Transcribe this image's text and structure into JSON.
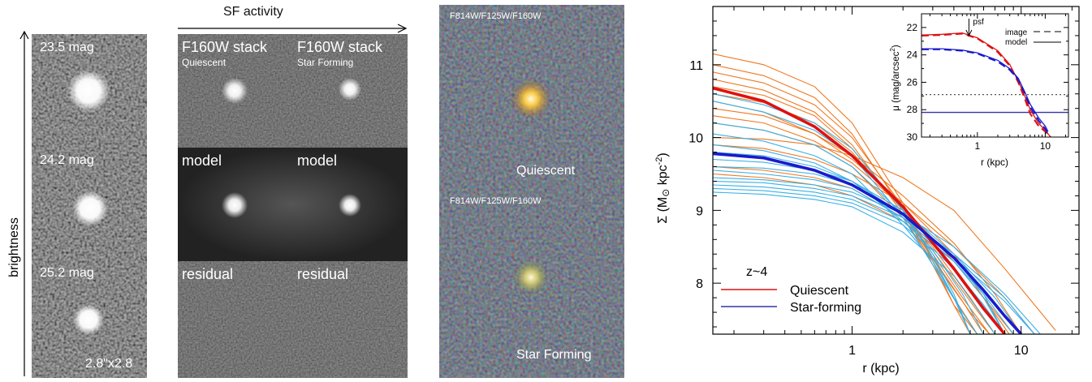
{
  "panel_a": {
    "axis_label": "brightness",
    "stamps": [
      {
        "label": "23.5 mag"
      },
      {
        "label": "24.2 mag"
      },
      {
        "label": "25.2 mag"
      }
    ],
    "scale_label": "2.8\"x2.8"
  },
  "panel_b": {
    "header": "SF activity",
    "columns": [
      {
        "title": "F160W stack",
        "subtitle": "Quiescent"
      },
      {
        "title": "F160W stack",
        "subtitle": "Star Forming"
      }
    ],
    "row_labels": [
      "model",
      "residual"
    ]
  },
  "panel_c": {
    "filters_label": "F814W/F125W/F160W",
    "top_label": "Quiescent",
    "bottom_label": "Star Forming"
  },
  "chart_data": [
    {
      "type": "line",
      "xlabel": "r (kpc)",
      "ylabel_parts": [
        "Σ (M",
        "⊙",
        " kpc",
        "-2",
        ")"
      ],
      "xscale": "log",
      "xlim": [
        0.15,
        22
      ],
      "ylim": [
        7.3,
        11.8
      ],
      "xticks": [
        {
          "v": 1,
          "label": "1"
        },
        {
          "v": 10,
          "label": "10"
        }
      ],
      "yticks": [
        {
          "v": 8,
          "label": "8"
        },
        {
          "v": 9,
          "label": "9"
        },
        {
          "v": 10,
          "label": "10"
        },
        {
          "v": 11,
          "label": "11"
        }
      ],
      "annotation": "z~4",
      "legend": [
        {
          "label": "Quiescent",
          "color": "#dd1111"
        },
        {
          "label": "Star-forming",
          "color": "#3333aa"
        }
      ],
      "colors": {
        "quiescent_thin": "#f07820",
        "starforming_thin": "#3ab0e6",
        "quiescent_mean": "#dd1111",
        "starforming_mean": "#1a1acc"
      },
      "mean_series": [
        {
          "name": "Quiescent",
          "x": [
            0.15,
            0.3,
            0.6,
            1.0,
            2.0,
            4.0,
            6.0,
            8.0
          ],
          "y": [
            10.68,
            10.5,
            10.15,
            9.75,
            9.05,
            8.2,
            7.65,
            7.3
          ]
        },
        {
          "name": "Star-forming",
          "x": [
            0.15,
            0.3,
            0.6,
            1.0,
            2.0,
            4.0,
            6.0,
            8.0,
            10.0
          ],
          "y": [
            9.78,
            9.72,
            9.55,
            9.35,
            8.95,
            8.35,
            7.9,
            7.55,
            7.3
          ]
        }
      ],
      "thin_series": [
        {
          "group": "quiescent",
          "x": [
            0.15,
            0.3,
            0.6,
            1.0,
            2.0,
            3.0,
            4.0,
            5.0
          ],
          "y": [
            11.15,
            11.0,
            10.7,
            10.2,
            9.1,
            8.3,
            7.7,
            7.3
          ]
        },
        {
          "group": "quiescent",
          "x": [
            0.15,
            0.3,
            0.6,
            1.0,
            2.0,
            3.0,
            4.0,
            5.5
          ],
          "y": [
            11.0,
            10.85,
            10.55,
            10.05,
            9.0,
            8.25,
            7.7,
            7.3
          ]
        },
        {
          "group": "quiescent",
          "x": [
            0.15,
            0.3,
            0.6,
            1.0,
            2.0,
            3.0,
            4.5,
            6.0
          ],
          "y": [
            10.9,
            10.75,
            10.45,
            10.0,
            9.05,
            8.35,
            7.75,
            7.3
          ]
        },
        {
          "group": "quiescent",
          "x": [
            0.15,
            0.3,
            0.6,
            1.0,
            2.0,
            3.5,
            5.0,
            6.5
          ],
          "y": [
            10.8,
            10.65,
            10.35,
            9.9,
            8.95,
            8.1,
            7.6,
            7.3
          ]
        },
        {
          "group": "quiescent",
          "x": [
            0.15,
            0.3,
            0.6,
            1.0,
            2.0,
            3.0,
            4.5,
            6.5
          ],
          "y": [
            10.7,
            10.58,
            10.3,
            9.85,
            9.0,
            8.4,
            7.8,
            7.3
          ]
        },
        {
          "group": "quiescent",
          "x": [
            0.15,
            0.3,
            0.6,
            1.0,
            2.0,
            3.0,
            5.0,
            7.0
          ],
          "y": [
            10.6,
            10.48,
            10.2,
            9.8,
            9.0,
            8.45,
            7.75,
            7.3
          ]
        },
        {
          "group": "quiescent",
          "x": [
            0.15,
            0.3,
            0.6,
            1.0,
            2.0,
            4.0,
            6.0,
            8.5
          ],
          "y": [
            10.5,
            10.35,
            10.05,
            9.7,
            9.1,
            8.4,
            7.8,
            7.3
          ]
        },
        {
          "group": "quiescent",
          "x": [
            0.15,
            0.3,
            0.6,
            1.0,
            2.0,
            4.0,
            7.0,
            10.0
          ],
          "y": [
            10.4,
            10.3,
            10.05,
            9.75,
            9.2,
            8.55,
            7.85,
            7.3
          ]
        },
        {
          "group": "quiescent",
          "x": [
            0.15,
            0.3,
            0.6,
            1.0,
            2.0,
            4.0,
            6.0,
            8.0
          ],
          "y": [
            10.3,
            10.2,
            9.95,
            9.65,
            9.05,
            8.3,
            7.8,
            7.3
          ]
        },
        {
          "group": "quiescent",
          "x": [
            0.15,
            0.3,
            0.6,
            1.0,
            2.0,
            3.0,
            4.0,
            5.5
          ],
          "y": [
            10.2,
            10.1,
            9.9,
            9.6,
            8.9,
            8.3,
            7.8,
            7.3
          ]
        },
        {
          "group": "quiescent",
          "x": [
            0.15,
            0.3,
            0.6,
            1.0,
            2.0,
            4.0,
            8.0,
            16.0
          ],
          "y": [
            10.0,
            9.98,
            9.9,
            9.75,
            9.45,
            9.0,
            8.2,
            7.35
          ]
        },
        {
          "group": "quiescent",
          "x": [
            0.15,
            0.3,
            0.6,
            1.0,
            2.0,
            4.0,
            8.0,
            12.0
          ],
          "y": [
            9.9,
            9.85,
            9.7,
            9.5,
            9.1,
            8.5,
            7.8,
            7.3
          ]
        },
        {
          "group": "quiescent",
          "x": [
            0.15,
            0.3,
            0.6,
            1.0,
            2.0,
            3.0,
            5.0,
            7.0
          ],
          "y": [
            9.6,
            9.55,
            9.45,
            9.3,
            8.9,
            8.5,
            7.8,
            7.3
          ]
        },
        {
          "group": "quiescent",
          "x": [
            0.15,
            0.3,
            0.6,
            1.0,
            2.0,
            4.0,
            6.0,
            9.0
          ],
          "y": [
            9.5,
            9.45,
            9.35,
            9.2,
            8.85,
            8.3,
            7.8,
            7.3
          ]
        },
        {
          "group": "starforming",
          "x": [
            0.15,
            0.3,
            0.6,
            1.0,
            2.0,
            3.0,
            4.0,
            5.0
          ],
          "y": [
            10.6,
            10.45,
            10.2,
            9.85,
            9.0,
            8.35,
            7.8,
            7.3
          ]
        },
        {
          "group": "starforming",
          "x": [
            0.15,
            0.3,
            0.6,
            1.0,
            2.0,
            3.0,
            4.5,
            5.5
          ],
          "y": [
            10.5,
            10.35,
            10.1,
            9.75,
            8.9,
            8.25,
            7.6,
            7.3
          ]
        },
        {
          "group": "starforming",
          "x": [
            0.15,
            0.3,
            0.6,
            1.0,
            2.0,
            3.0,
            4.0,
            5.0
          ],
          "y": [
            10.2,
            10.1,
            9.9,
            9.6,
            8.95,
            8.4,
            7.85,
            7.3
          ]
        },
        {
          "group": "starforming",
          "x": [
            0.15,
            0.3,
            0.6,
            1.0,
            2.0,
            3.0,
            4.0,
            5.0
          ],
          "y": [
            10.05,
            9.95,
            9.75,
            9.5,
            8.8,
            8.3,
            7.8,
            7.3
          ]
        },
        {
          "group": "starforming",
          "x": [
            0.15,
            0.3,
            0.6,
            1.0,
            2.0,
            4.0,
            6.0,
            8.0
          ],
          "y": [
            9.9,
            9.82,
            9.65,
            9.4,
            8.85,
            8.2,
            7.7,
            7.3
          ]
        },
        {
          "group": "starforming",
          "x": [
            0.15,
            0.3,
            0.6,
            1.0,
            2.0,
            4.0,
            6.0,
            8.0
          ],
          "y": [
            9.8,
            9.75,
            9.6,
            9.4,
            8.95,
            8.35,
            7.85,
            7.3
          ]
        },
        {
          "group": "starforming",
          "x": [
            0.15,
            0.3,
            0.6,
            1.0,
            2.0,
            4.0,
            7.0,
            10.0
          ],
          "y": [
            9.7,
            9.66,
            9.55,
            9.4,
            9.0,
            8.4,
            7.8,
            7.3
          ]
        },
        {
          "group": "starforming",
          "x": [
            0.15,
            0.3,
            0.6,
            1.0,
            2.0,
            4.0,
            8.0,
            12.0
          ],
          "y": [
            9.6,
            9.58,
            9.5,
            9.35,
            8.95,
            8.35,
            7.75,
            7.3
          ]
        },
        {
          "group": "starforming",
          "x": [
            0.15,
            0.3,
            0.6,
            1.0,
            2.0,
            4.0,
            6.0,
            9.0
          ],
          "y": [
            9.55,
            9.5,
            9.42,
            9.3,
            8.9,
            8.3,
            7.85,
            7.3
          ]
        },
        {
          "group": "starforming",
          "x": [
            0.15,
            0.3,
            0.6,
            1.0,
            2.0,
            4.0,
            8.0,
            13.0
          ],
          "y": [
            9.45,
            9.42,
            9.35,
            9.25,
            8.95,
            8.5,
            7.85,
            7.3
          ]
        },
        {
          "group": "starforming",
          "x": [
            0.15,
            0.3,
            0.6,
            1.0,
            2.0,
            4.0,
            8.0,
            12.0
          ],
          "y": [
            9.4,
            9.38,
            9.3,
            9.2,
            8.9,
            8.4,
            7.8,
            7.3
          ]
        },
        {
          "group": "starforming",
          "x": [
            0.15,
            0.3,
            0.6,
            1.0,
            2.0,
            4.0,
            6.0,
            8.0
          ],
          "y": [
            9.35,
            9.32,
            9.25,
            9.15,
            8.85,
            8.3,
            7.8,
            7.3
          ]
        },
        {
          "group": "starforming",
          "x": [
            0.15,
            0.3,
            0.6,
            1.0,
            2.0,
            3.0,
            4.5,
            6.0
          ],
          "y": [
            9.3,
            9.27,
            9.2,
            9.1,
            8.8,
            8.45,
            7.85,
            7.3
          ]
        },
        {
          "group": "starforming",
          "x": [
            0.15,
            0.3,
            0.6,
            1.0,
            2.0,
            4.0,
            5.5,
            7.0
          ],
          "y": [
            9.25,
            9.22,
            9.15,
            9.05,
            8.7,
            8.1,
            7.65,
            7.3
          ]
        }
      ]
    },
    {
      "type": "line",
      "xlabel": "r (kpc)",
      "ylabel_parts": [
        "μ (mag/arcsec",
        "2",
        ")"
      ],
      "xscale": "log",
      "xlim": [
        0.15,
        22
      ],
      "ylim": [
        30,
        21
      ],
      "xticks": [
        {
          "v": 1,
          "label": "1"
        },
        {
          "v": 10,
          "label": "10"
        }
      ],
      "yticks": [
        {
          "v": 22,
          "label": "22"
        },
        {
          "v": 24,
          "label": "24"
        },
        {
          "v": 26,
          "label": "26"
        },
        {
          "v": 28,
          "label": "28"
        },
        {
          "v": 30,
          "label": "30"
        }
      ],
      "annotation": "psf",
      "psf_x": 0.75,
      "hlines": [
        {
          "y": 26.9,
          "style": "dotted",
          "color": "#555555"
        },
        {
          "y": 28.2,
          "style": "solid",
          "color": "#3333aa"
        }
      ],
      "legend": [
        {
          "label": "image",
          "style": "dashed"
        },
        {
          "label": "model",
          "style": "solid"
        }
      ],
      "series": [
        {
          "name": "image",
          "group": "quiescent",
          "color": "#dd1111",
          "style": "dashed",
          "x": [
            0.15,
            0.3,
            0.6,
            1.0,
            2.0,
            3.0,
            4.0,
            5.0,
            6.0,
            8.0,
            10.0,
            12.0
          ],
          "y": [
            22.6,
            22.55,
            22.45,
            22.8,
            23.8,
            24.8,
            26.0,
            27.2,
            28.3,
            29.2,
            29.6,
            30.0
          ]
        },
        {
          "name": "model",
          "group": "quiescent",
          "color": "#dd1111",
          "style": "solid",
          "x": [
            0.15,
            0.3,
            0.6,
            1.0,
            2.0,
            3.0,
            4.0,
            5.0,
            6.0,
            8.0,
            10.0,
            12.0
          ],
          "y": [
            22.55,
            22.5,
            22.4,
            22.75,
            23.7,
            24.7,
            25.9,
            27.0,
            28.0,
            29.0,
            29.5,
            30.0
          ]
        },
        {
          "name": "image",
          "group": "starforming",
          "color": "#1a1acc",
          "style": "dashed",
          "x": [
            0.15,
            0.3,
            0.6,
            1.0,
            2.0,
            3.0,
            4.0,
            5.0,
            6.0,
            8.0,
            10.0,
            11.0
          ],
          "y": [
            23.6,
            23.6,
            23.7,
            23.9,
            24.5,
            25.1,
            25.8,
            26.8,
            27.8,
            28.8,
            29.4,
            29.8
          ]
        },
        {
          "name": "model",
          "group": "starforming",
          "color": "#1a1acc",
          "style": "solid",
          "x": [
            0.15,
            0.3,
            0.6,
            1.0,
            2.0,
            3.0,
            4.0,
            5.0,
            6.0,
            8.0,
            10.0,
            11.0
          ],
          "y": [
            23.55,
            23.55,
            23.65,
            23.85,
            24.4,
            25.0,
            25.7,
            26.7,
            27.6,
            28.6,
            29.2,
            29.6
          ]
        }
      ]
    }
  ]
}
